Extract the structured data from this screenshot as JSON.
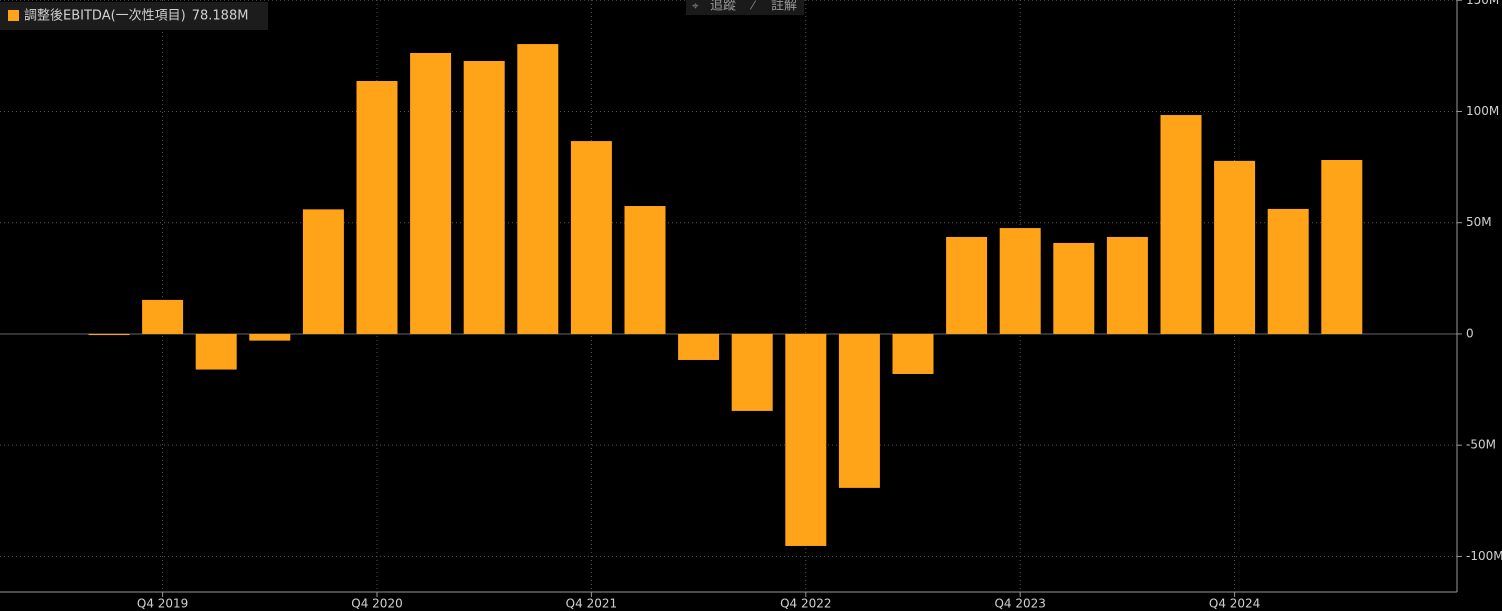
{
  "chart_data": {
    "type": "bar",
    "toolbar": [
      "追蹤",
      "註解"
    ],
    "legend_value": "78.188M",
    "categories": [
      null,
      "Q4 2019",
      null,
      null,
      null,
      "Q4 2020",
      null,
      null,
      null,
      "Q4 2021",
      null,
      null,
      null,
      "Q4 2022",
      null,
      null,
      null,
      "Q4 2023",
      null,
      null,
      null,
      "Q4 2024",
      null,
      null
    ],
    "series": [
      {
        "name": "調整後EBITDA(一次性項目)",
        "color": "#ffa319",
        "values": [
          -0.5,
          15.3,
          -16,
          -3,
          56,
          113.7,
          126.3,
          122.7,
          130.3,
          86.7,
          57.5,
          -11.7,
          -34.6,
          -95.3,
          -69.2,
          -18,
          43.6,
          47.6,
          40.9,
          43.6,
          98.4,
          77.8,
          56.2,
          78.188
        ]
      }
    ],
    "ylim": [
      -116,
      150
    ],
    "yticks": [
      {
        "value": -100,
        "label": "-100M"
      },
      {
        "value": -50,
        "label": "-50M"
      },
      0,
      {
        "value": 50,
        "label": "50M"
      },
      {
        "value": 100,
        "label": "100M"
      },
      {
        "value": 150,
        "label": "150M"
      }
    ],
    "grid": true
  }
}
